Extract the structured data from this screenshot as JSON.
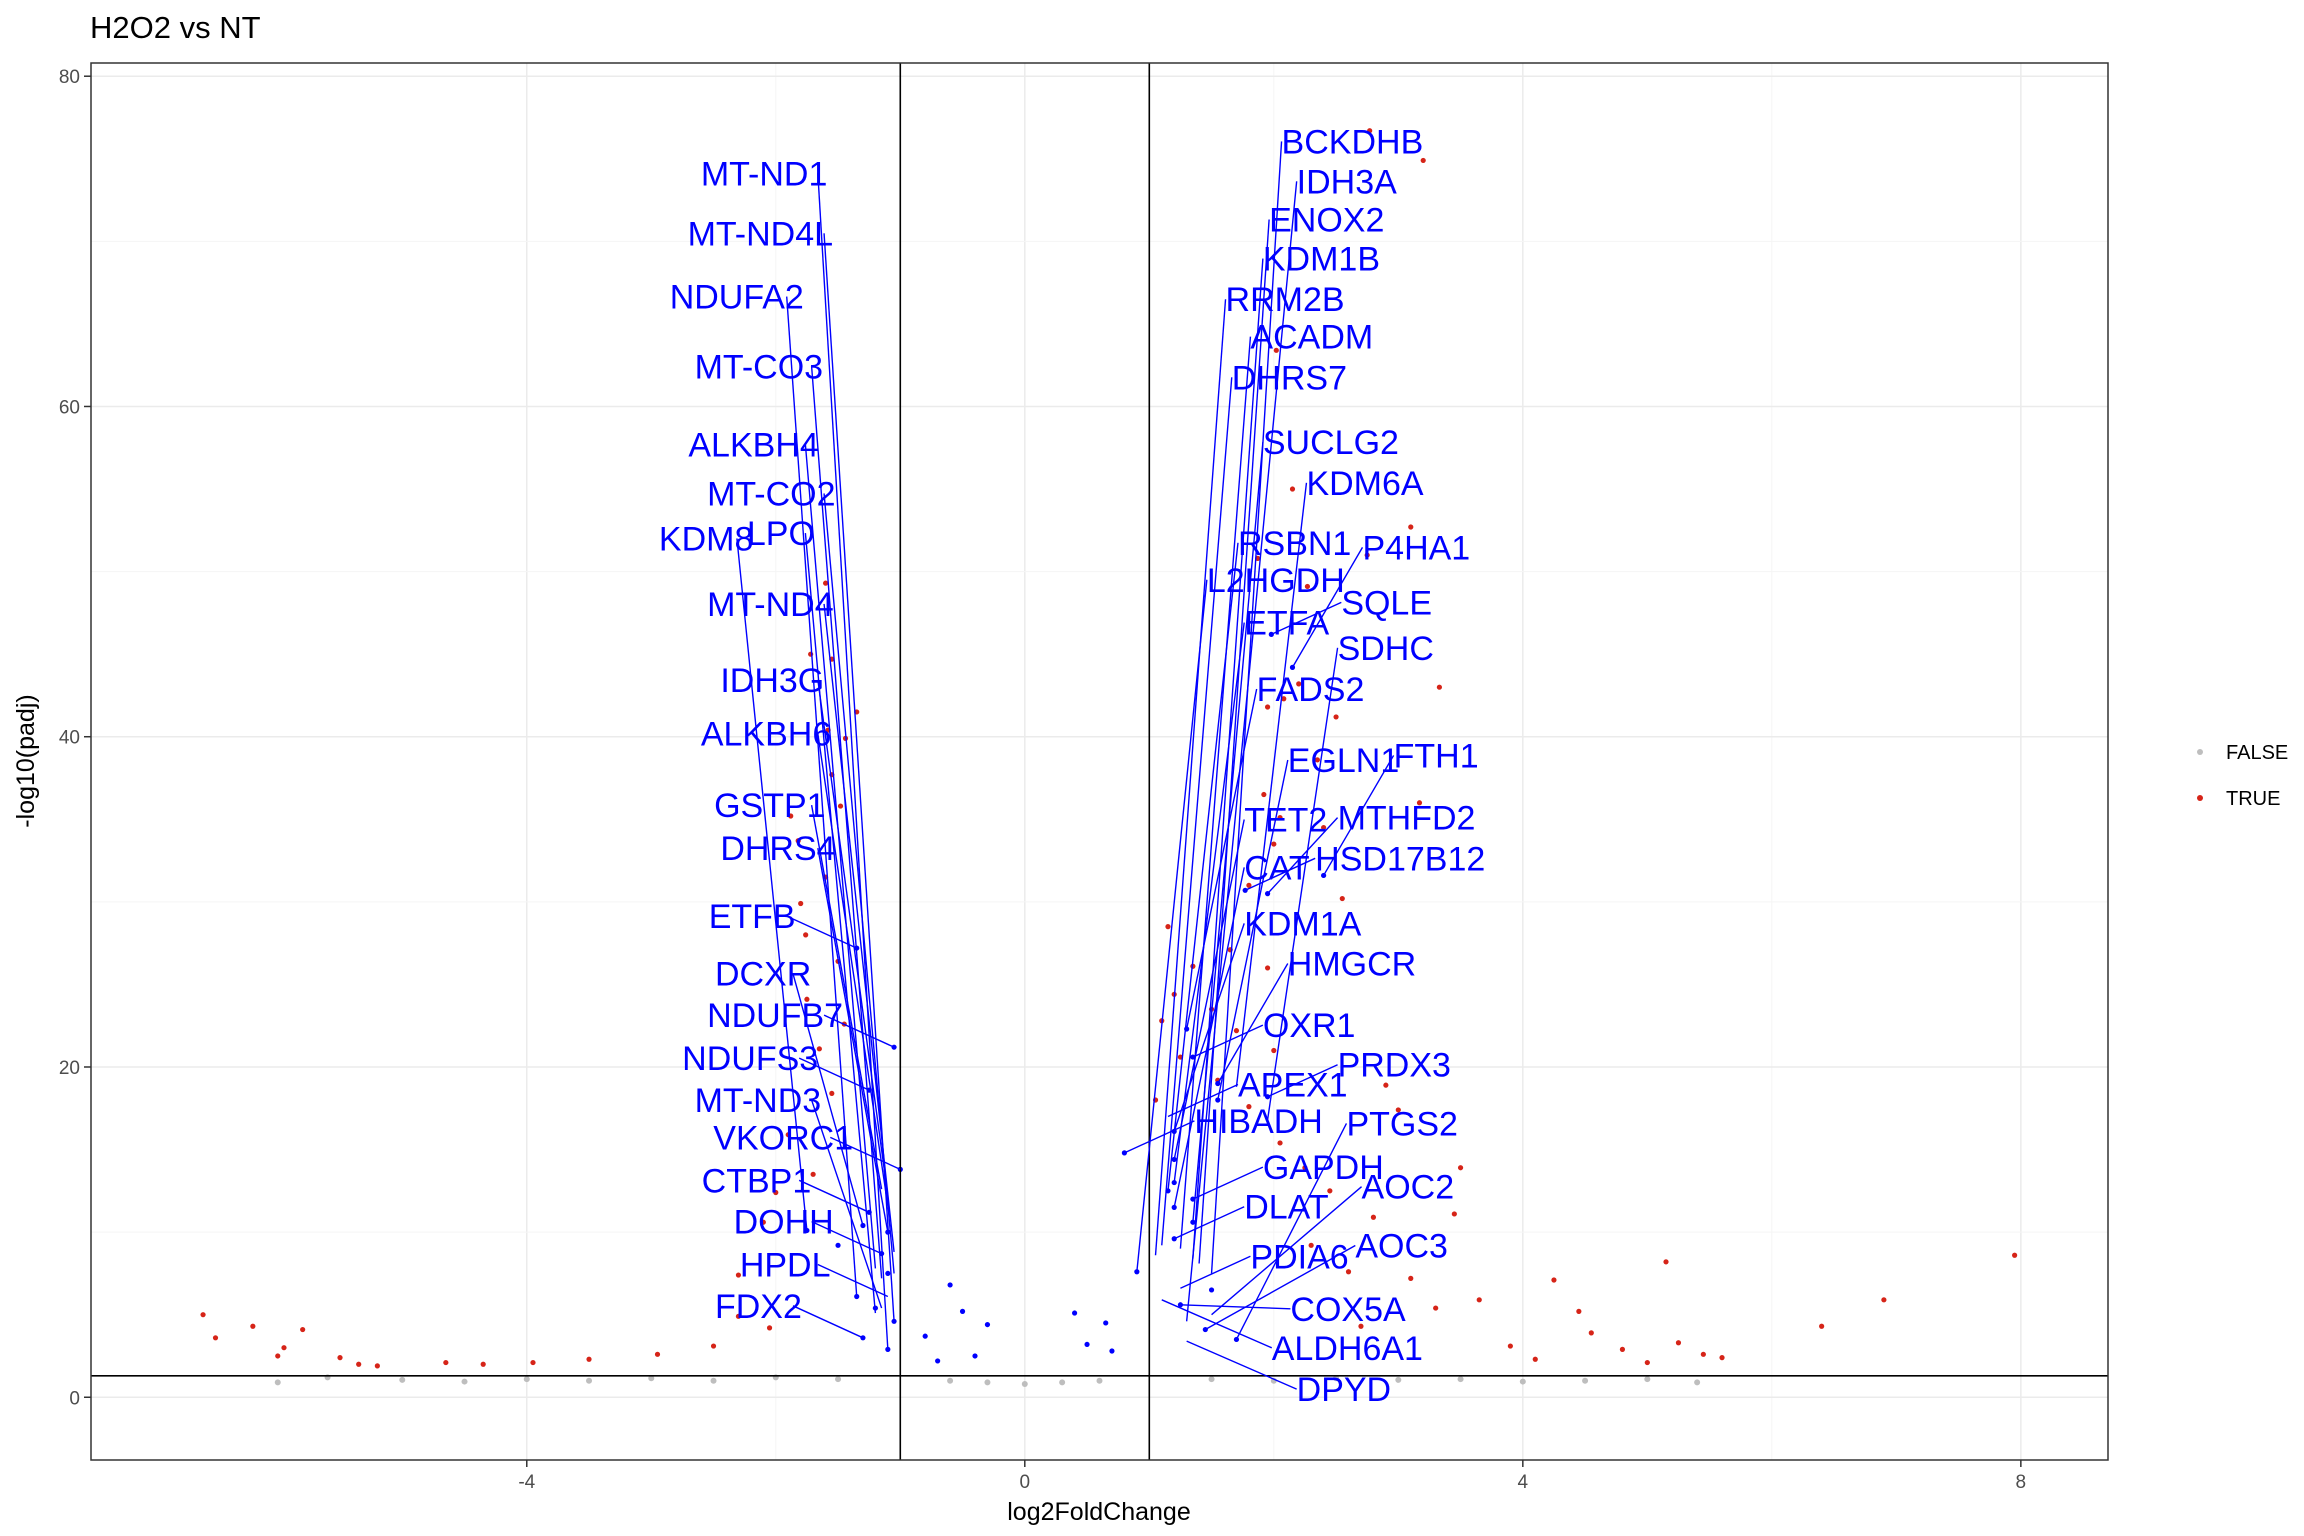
{
  "chart_data": {
    "type": "scatter",
    "title": "H2O2 vs NT",
    "xlabel": "log2FoldChange",
    "ylabel": "-log10(padj)",
    "xlim": [
      -7.5,
      8.7
    ],
    "ylim": [
      -3.8,
      80.8
    ],
    "xticks": [
      -4,
      0,
      4,
      8
    ],
    "yticks": [
      0,
      20,
      40,
      60,
      80
    ],
    "grid": true,
    "thresholds": {
      "vertical": [
        -1,
        1
      ],
      "horizontal": 1.3
    },
    "legend": {
      "position": "right",
      "entries": [
        {
          "label": "FALSE",
          "color": "#bebebe"
        },
        {
          "label": "TRUE",
          "color": "#d62418"
        }
      ]
    },
    "colors": {
      "significant": "#d62418",
      "nonsignificant": "#bebebe",
      "highlight": "#0000ff"
    },
    "series": [
      {
        "name": "TRUE",
        "points": [
          [
            2.77,
            76.7
          ],
          [
            3.2,
            74.9
          ],
          [
            2.02,
            63.4
          ],
          [
            2.15,
            55.0
          ],
          [
            3.1,
            52.7
          ],
          [
            2.75,
            51.0
          ],
          [
            1.87,
            50.8
          ],
          [
            2.27,
            49.1
          ],
          [
            3.33,
            43.0
          ],
          [
            2.2,
            43.2
          ],
          [
            2.5,
            41.2
          ],
          [
            1.95,
            41.8
          ],
          [
            2.08,
            42.3
          ],
          [
            3.17,
            36.0
          ],
          [
            1.92,
            36.5
          ],
          [
            2.35,
            38.6
          ],
          [
            2.05,
            35.1
          ],
          [
            1.8,
            31.0
          ],
          [
            2.0,
            33.5
          ],
          [
            2.4,
            34.5
          ],
          [
            2.55,
            30.2
          ],
          [
            -1.6,
            49.3
          ],
          [
            -1.72,
            45.0
          ],
          [
            -1.55,
            44.7
          ],
          [
            -1.58,
            40.4
          ],
          [
            -1.35,
            41.5
          ],
          [
            -1.44,
            39.9
          ],
          [
            -1.55,
            37.7
          ],
          [
            -1.48,
            35.8
          ],
          [
            -1.88,
            35.2
          ],
          [
            -1.82,
            33.7
          ],
          [
            -1.8,
            29.9
          ],
          [
            -1.6,
            31.5
          ],
          [
            -1.76,
            28.0
          ],
          [
            7.95,
            8.6
          ],
          [
            6.9,
            5.9
          ],
          [
            6.4,
            4.3
          ],
          [
            5.15,
            8.2
          ],
          [
            5.45,
            2.6
          ],
          [
            5.6,
            2.4
          ],
          [
            5.25,
            3.3
          ],
          [
            4.45,
            5.2
          ],
          [
            4.25,
            7.1
          ],
          [
            3.65,
            5.9
          ],
          [
            3.45,
            11.1
          ],
          [
            3.5,
            13.9
          ],
          [
            2.9,
            18.9
          ],
          [
            3.0,
            17.4
          ],
          [
            -6.6,
            5.0
          ],
          [
            -6.5,
            3.6
          ],
          [
            -6.2,
            4.3
          ],
          [
            -5.8,
            4.1
          ],
          [
            -5.95,
            3.0
          ],
          [
            -6.0,
            2.5
          ],
          [
            -5.5,
            2.4
          ],
          [
            -5.35,
            2.0
          ],
          [
            -5.2,
            1.9
          ],
          [
            -4.65,
            2.1
          ],
          [
            -4.35,
            2.0
          ],
          [
            -3.95,
            2.1
          ],
          [
            -3.5,
            2.3
          ],
          [
            -2.95,
            2.6
          ],
          [
            -2.5,
            3.1
          ],
          [
            -2.3,
            4.9
          ],
          [
            -2.05,
            4.2
          ],
          [
            -2.3,
            7.4
          ],
          [
            -2.1,
            10.6
          ],
          [
            -2.0,
            12.4
          ],
          [
            -1.9,
            15.9
          ],
          [
            -1.7,
            13.5
          ],
          [
            -1.55,
            18.4
          ],
          [
            -1.45,
            22.6
          ],
          [
            -1.75,
            24.1
          ],
          [
            -1.5,
            26.4
          ],
          [
            -1.65,
            21.1
          ],
          [
            1.2,
            24.4
          ],
          [
            1.35,
            26.1
          ],
          [
            1.5,
            23.5
          ],
          [
            1.65,
            27.1
          ],
          [
            1.95,
            26.0
          ],
          [
            1.7,
            22.2
          ],
          [
            2.0,
            21.0
          ],
          [
            1.55,
            19.2
          ],
          [
            1.8,
            17.6
          ],
          [
            2.05,
            15.4
          ],
          [
            2.25,
            13.9
          ],
          [
            2.45,
            12.5
          ],
          [
            2.8,
            10.9
          ],
          [
            2.3,
            9.2
          ],
          [
            2.6,
            7.6
          ],
          [
            3.1,
            7.2
          ],
          [
            3.3,
            5.4
          ],
          [
            2.7,
            4.3
          ],
          [
            4.8,
            2.9
          ],
          [
            5.0,
            2.1
          ],
          [
            4.55,
            3.9
          ],
          [
            3.9,
            3.1
          ],
          [
            4.1,
            2.3
          ],
          [
            1.15,
            28.5
          ],
          [
            1.1,
            22.8
          ],
          [
            1.25,
            20.6
          ],
          [
            1.05,
            18.0
          ]
        ]
      },
      {
        "name": "FALSE",
        "points": [
          [
            -6.0,
            0.9
          ],
          [
            -5.6,
            1.2
          ],
          [
            -5.0,
            1.05
          ],
          [
            -4.5,
            0.95
          ],
          [
            -4.0,
            1.1
          ],
          [
            -3.5,
            1.0
          ],
          [
            -3.0,
            1.15
          ],
          [
            -2.5,
            1.0
          ],
          [
            -2.0,
            1.2
          ],
          [
            -1.5,
            1.1
          ],
          [
            -0.6,
            1.0
          ],
          [
            -0.3,
            0.9
          ],
          [
            0.0,
            0.8
          ],
          [
            0.3,
            0.9
          ],
          [
            0.6,
            1.0
          ],
          [
            1.5,
            1.1
          ],
          [
            2.0,
            1.0
          ],
          [
            2.5,
            1.15
          ],
          [
            3.0,
            1.05
          ],
          [
            3.5,
            1.1
          ],
          [
            4.0,
            0.95
          ],
          [
            4.5,
            1.0
          ],
          [
            5.0,
            1.1
          ],
          [
            5.4,
            0.9
          ]
        ]
      },
      {
        "name": "highlight",
        "points": [
          [
            1.98,
            46.2
          ],
          [
            2.15,
            44.2
          ],
          [
            1.77,
            30.7
          ],
          [
            1.95,
            30.5
          ],
          [
            2.4,
            31.6
          ],
          [
            -1.35,
            27.2
          ],
          [
            -1.05,
            21.2
          ],
          [
            -1.25,
            18.6
          ],
          [
            -1.0,
            13.8
          ],
          [
            0.8,
            14.8
          ],
          [
            1.35,
            20.6
          ],
          [
            1.55,
            19.0
          ],
          [
            1.3,
            22.3
          ],
          [
            1.55,
            18.0
          ],
          [
            1.95,
            18.2
          ],
          [
            1.2,
            16.1
          ],
          [
            1.2,
            14.4
          ],
          [
            1.2,
            13.0
          ],
          [
            1.15,
            12.5
          ],
          [
            1.35,
            12.0
          ],
          [
            1.2,
            11.5
          ],
          [
            1.35,
            10.6
          ],
          [
            1.2,
            9.6
          ],
          [
            -1.25,
            11.2
          ],
          [
            -1.3,
            10.4
          ],
          [
            -1.1,
            10.0
          ],
          [
            -1.5,
            9.2
          ],
          [
            -1.75,
            10.1
          ],
          [
            -1.15,
            8.7
          ],
          [
            -1.1,
            7.5
          ],
          [
            -1.35,
            6.1
          ],
          [
            -1.2,
            5.4
          ],
          [
            -1.05,
            4.6
          ],
          [
            -1.3,
            3.6
          ],
          [
            -1.1,
            2.9
          ],
          [
            0.9,
            7.6
          ],
          [
            1.5,
            6.5
          ],
          [
            1.25,
            5.6
          ],
          [
            1.45,
            4.1
          ],
          [
            1.7,
            3.5
          ],
          [
            -0.6,
            6.8
          ],
          [
            -0.5,
            5.2
          ],
          [
            -0.3,
            4.4
          ],
          [
            -0.8,
            3.7
          ],
          [
            0.5,
            3.2
          ],
          [
            0.4,
            5.1
          ],
          [
            0.65,
            4.5
          ],
          [
            0.7,
            2.8
          ],
          [
            -0.4,
            2.5
          ],
          [
            -0.7,
            2.2
          ]
        ]
      }
    ],
    "labels": [
      {
        "gene": "SQLE",
        "x": 1.98,
        "y": 46.2
      },
      {
        "gene": "P4HA1",
        "x": 2.15,
        "y": 44.2
      },
      {
        "gene": "HSD17B12",
        "x": 1.77,
        "y": 30.7
      },
      {
        "gene": "MTHFD2",
        "x": 1.95,
        "y": 30.5
      },
      {
        "gene": "FTH1",
        "x": 2.4,
        "y": 31.6
      },
      {
        "gene": "ETFB",
        "x": -1.35,
        "y": 27.2
      },
      {
        "gene": "NDUFB7",
        "x": -1.05,
        "y": 21.2
      },
      {
        "gene": "APEX1",
        "x": 1.15,
        "y": 17.0
      },
      {
        "gene": "OXR1",
        "x": 1.35,
        "y": 20.6
      },
      {
        "gene": "HMGCR",
        "x": 1.55,
        "y": 19.0
      },
      {
        "gene": "VKORC1",
        "x": -1.0,
        "y": 13.8
      },
      {
        "gene": "NDUFS3",
        "x": -1.25,
        "y": 18.6
      },
      {
        "gene": "HIBADH",
        "x": 0.8,
        "y": 14.8
      },
      {
        "gene": "KDM1A",
        "x": 1.2,
        "y": 16.1
      },
      {
        "gene": "EGLN1",
        "x": 1.55,
        "y": 18.0
      },
      {
        "gene": "PRDX3",
        "x": 1.95,
        "y": 18.2
      },
      {
        "gene": "CTBP1",
        "x": -1.25,
        "y": 11.2
      },
      {
        "gene": "DCXR",
        "x": -1.3,
        "y": 10.4
      },
      {
        "gene": "TET2",
        "x": 1.2,
        "y": 14.4
      },
      {
        "gene": "FADS2",
        "x": 1.3,
        "y": 22.3
      },
      {
        "gene": "SDHC",
        "x": 1.95,
        "y": 16.8
      },
      {
        "gene": "KDM6A",
        "x": 1.7,
        "y": 18.8
      },
      {
        "gene": "DHRS4",
        "x": -1.1,
        "y": 10.0
      },
      {
        "gene": "GSTP1",
        "x": -1.15,
        "y": 12.6
      },
      {
        "gene": "DOHH",
        "x": -1.15,
        "y": 8.7
      },
      {
        "gene": "ETFA",
        "x": 1.2,
        "y": 13.0
      },
      {
        "gene": "GAPDH",
        "x": 1.35,
        "y": 12.0
      },
      {
        "gene": "ALKBH6",
        "x": -1.1,
        "y": 11.6
      },
      {
        "gene": "IDH3G",
        "x": -1.1,
        "y": 12.2
      },
      {
        "gene": "RSBN1",
        "x": 1.15,
        "y": 12.5
      },
      {
        "gene": "CAT",
        "x": 1.2,
        "y": 11.5
      },
      {
        "gene": "SUCLG2",
        "x": 1.35,
        "y": 10.6
      },
      {
        "gene": "DLAT",
        "x": 1.2,
        "y": 9.6
      },
      {
        "gene": "DHRS7",
        "x": 1.1,
        "y": 9.2
      },
      {
        "gene": "MT-ND4",
        "x": -1.05,
        "y": 8.8
      },
      {
        "gene": "KDM8",
        "x": -1.75,
        "y": 10.1
      },
      {
        "gene": "RRM2B",
        "x": 1.05,
        "y": 8.6
      },
      {
        "gene": "ACADM",
        "x": 1.25,
        "y": 9.0
      },
      {
        "gene": "KDM1B",
        "x": 1.35,
        "y": 8.4
      },
      {
        "gene": "ENOX2",
        "x": 1.4,
        "y": 8.1
      },
      {
        "gene": "MT-CO2",
        "x": -1.05,
        "y": 7.5
      },
      {
        "gene": "ALKBH4",
        "x": -1.2,
        "y": 7.8
      },
      {
        "gene": "MT-CO3",
        "x": -1.15,
        "y": 7.2
      },
      {
        "gene": "HPDL",
        "x": -1.1,
        "y": 6.1
      },
      {
        "gene": "L2HGDH",
        "x": 0.9,
        "y": 7.6
      },
      {
        "gene": "BCKDHB",
        "x": 1.5,
        "y": 7.5
      },
      {
        "gene": "PDIA6",
        "x": 1.25,
        "y": 6.6
      },
      {
        "gene": "ALDH6A1",
        "x": 1.1,
        "y": 5.9
      },
      {
        "gene": "NDUFA2",
        "x": -1.35,
        "y": 6.1
      },
      {
        "gene": "MT-ND3",
        "x": -1.15,
        "y": 5.4
      },
      {
        "gene": "LPO",
        "x": -1.2,
        "y": 5.1
      },
      {
        "gene": "COX5A",
        "x": 1.25,
        "y": 5.6
      },
      {
        "gene": "AOC3",
        "x": 1.45,
        "y": 4.1
      },
      {
        "gene": "IDH3A",
        "x": 1.3,
        "y": 4.6
      },
      {
        "gene": "FDX2",
        "x": -1.3,
        "y": 3.6
      },
      {
        "gene": "DPYD",
        "x": 1.3,
        "y": 3.4
      },
      {
        "gene": "MT-ND4L",
        "x": -1.05,
        "y": 4.6
      },
      {
        "gene": "MT-ND1",
        "x": -1.1,
        "y": 2.9
      },
      {
        "gene": "AOC2",
        "x": 1.5,
        "y": 5.0
      },
      {
        "gene": "PTGS2",
        "x": 1.7,
        "y": 3.5
      }
    ]
  }
}
